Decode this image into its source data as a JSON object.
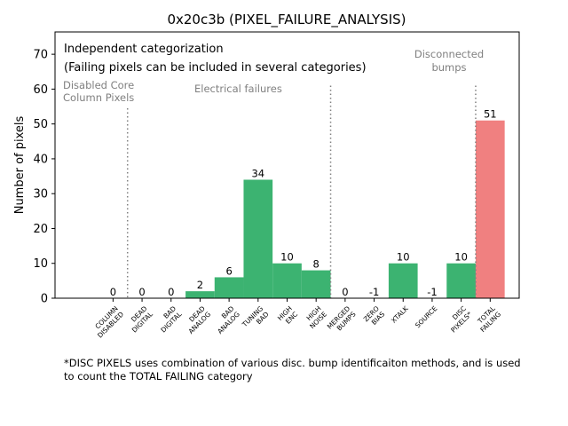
{
  "chart_data": {
    "type": "bar",
    "title": "0x20c3b (PIXEL_FAILURE_ANALYSIS)",
    "xlabel": "",
    "ylabel": "Number of pixels",
    "ylim": [
      0,
      76.4
    ],
    "xlim": [
      -2,
      14
    ],
    "yticks": [
      0,
      10,
      20,
      30,
      40,
      50,
      60,
      70
    ],
    "categories": [
      "COLUMN\nDISABLED",
      "DEAD\nDIGITAL",
      "BAD\nDIGITAL",
      "DEAD\nANALOG",
      "BAD\nANALOG",
      "TUNING\nBAD",
      "HIGH\nENC",
      "HIGH\nNOISE",
      "MERGED\nBUMPS",
      "ZERO\nBIAS",
      "XTALK",
      "SOURCE",
      "DISC\nPIXELS*",
      "TOTAL\nFAILING"
    ],
    "values": [
      0,
      0,
      0,
      2,
      6,
      34,
      10,
      8,
      0,
      -1,
      10,
      -1,
      10,
      51
    ],
    "bar_colors": [
      "#3cb371",
      "#3cb371",
      "#3cb371",
      "#3cb371",
      "#3cb371",
      "#3cb371",
      "#3cb371",
      "#3cb371",
      "#3cb371",
      "#3cb371",
      "#3cb371",
      "#3cb371",
      "#3cb371",
      "#f08080"
    ],
    "separators": [
      {
        "x": 0.5,
        "ymax": 54.5
      },
      {
        "x": 7.5,
        "ymax": 61
      },
      {
        "x": 12.5,
        "ymax": 61
      }
    ],
    "annotations": {
      "heading1": "Independent categorization",
      "heading2": "(Failing pixels can be included in several categories)",
      "group_disabled": [
        "Disabled Core",
        "Column Pixels"
      ],
      "group_electrical": "Electrical failures",
      "group_disconnected": [
        "Disconnected",
        "bumps"
      ]
    },
    "grid": false
  },
  "footnote": [
    "*DISC PIXELS uses combination of various disc. bump identificaiton methods, and is used",
    "to count the TOTAL FAILING category"
  ]
}
